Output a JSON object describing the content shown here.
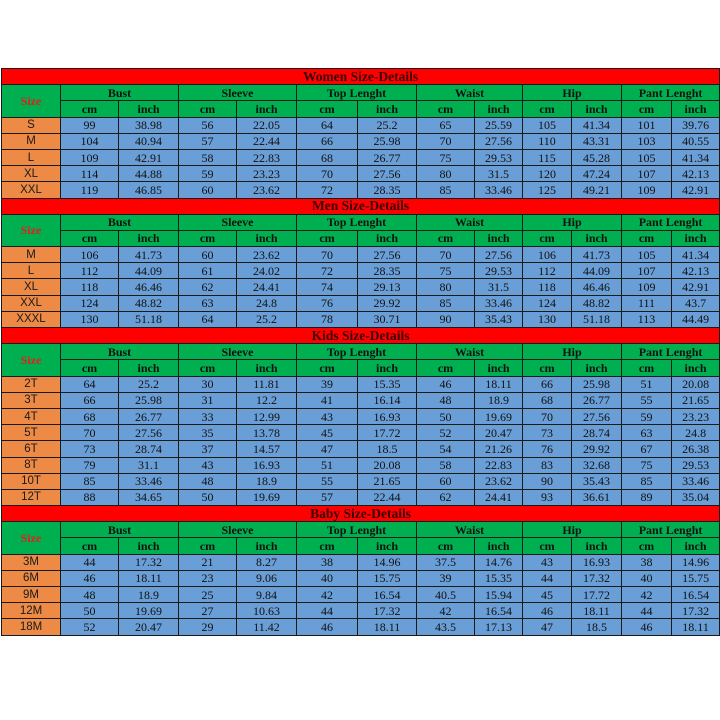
{
  "colors": {
    "title_bg": "#ff0000",
    "header_bg": "#00b050",
    "size_bg": "#ed8a45",
    "value_bg": "#6a9ed6",
    "size_label": "#e0201c"
  },
  "size_label": "Size",
  "measures": [
    "Bust",
    "Sleeve",
    "Top Lenght",
    "Waist",
    "Hip",
    "Pant Lenght"
  ],
  "units": [
    "cm",
    "inch"
  ],
  "sections": [
    {
      "title": "Women Size-Details",
      "rows": [
        [
          "S",
          "99",
          "38.98",
          "56",
          "22.05",
          "64",
          "25.2",
          "65",
          "25.59",
          "105",
          "41.34",
          "101",
          "39.76"
        ],
        [
          "M",
          "104",
          "40.94",
          "57",
          "22.44",
          "66",
          "25.98",
          "70",
          "27.56",
          "110",
          "43.31",
          "103",
          "40.55"
        ],
        [
          "L",
          "109",
          "42.91",
          "58",
          "22.83",
          "68",
          "26.77",
          "75",
          "29.53",
          "115",
          "45.28",
          "105",
          "41.34"
        ],
        [
          "XL",
          "114",
          "44.88",
          "59",
          "23.23",
          "70",
          "27.56",
          "80",
          "31.5",
          "120",
          "47.24",
          "107",
          "42.13"
        ],
        [
          "XXL",
          "119",
          "46.85",
          "60",
          "23.62",
          "72",
          "28.35",
          "85",
          "33.46",
          "125",
          "49.21",
          "109",
          "42.91"
        ]
      ]
    },
    {
      "title": "Men Size-Details",
      "rows": [
        [
          "M",
          "106",
          "41.73",
          "60",
          "23.62",
          "70",
          "27.56",
          "70",
          "27.56",
          "106",
          "41.73",
          "105",
          "41.34"
        ],
        [
          "L",
          "112",
          "44.09",
          "61",
          "24.02",
          "72",
          "28.35",
          "75",
          "29.53",
          "112",
          "44.09",
          "107",
          "42.13"
        ],
        [
          "XL",
          "118",
          "46.46",
          "62",
          "24.41",
          "74",
          "29.13",
          "80",
          "31.5",
          "118",
          "46.46",
          "109",
          "42.91"
        ],
        [
          "XXL",
          "124",
          "48.82",
          "63",
          "24.8",
          "76",
          "29.92",
          "85",
          "33.46",
          "124",
          "48.82",
          "111",
          "43.7"
        ],
        [
          "XXXL",
          "130",
          "51.18",
          "64",
          "25.2",
          "78",
          "30.71",
          "90",
          "35.43",
          "130",
          "51.18",
          "113",
          "44.49"
        ]
      ]
    },
    {
      "title": "Kids Size-Details",
      "rows": [
        [
          "2T",
          "64",
          "25.2",
          "30",
          "11.81",
          "39",
          "15.35",
          "46",
          "18.11",
          "66",
          "25.98",
          "51",
          "20.08"
        ],
        [
          "3T",
          "66",
          "25.98",
          "31",
          "12.2",
          "41",
          "16.14",
          "48",
          "18.9",
          "68",
          "26.77",
          "55",
          "21.65"
        ],
        [
          "4T",
          "68",
          "26.77",
          "33",
          "12.99",
          "43",
          "16.93",
          "50",
          "19.69",
          "70",
          "27.56",
          "59",
          "23.23"
        ],
        [
          "5T",
          "70",
          "27.56",
          "35",
          "13.78",
          "45",
          "17.72",
          "52",
          "20.47",
          "73",
          "28.74",
          "63",
          "24.8"
        ],
        [
          "6T",
          "73",
          "28.74",
          "37",
          "14.57",
          "47",
          "18.5",
          "54",
          "21.26",
          "76",
          "29.92",
          "67",
          "26.38"
        ],
        [
          "8T",
          "79",
          "31.1",
          "43",
          "16.93",
          "51",
          "20.08",
          "58",
          "22.83",
          "83",
          "32.68",
          "75",
          "29.53"
        ],
        [
          "10T",
          "85",
          "33.46",
          "48",
          "18.9",
          "55",
          "21.65",
          "60",
          "23.62",
          "90",
          "35.43",
          "85",
          "33.46"
        ],
        [
          "12T",
          "88",
          "34.65",
          "50",
          "19.69",
          "57",
          "22.44",
          "62",
          "24.41",
          "93",
          "36.61",
          "89",
          "35.04"
        ]
      ]
    },
    {
      "title": "Baby Size-Details",
      "rows": [
        [
          "3M",
          "44",
          "17.32",
          "21",
          "8.27",
          "38",
          "14.96",
          "37.5",
          "14.76",
          "43",
          "16.93",
          "38",
          "14.96"
        ],
        [
          "6M",
          "46",
          "18.11",
          "23",
          "9.06",
          "40",
          "15.75",
          "39",
          "15.35",
          "44",
          "17.32",
          "40",
          "15.75"
        ],
        [
          "9M",
          "48",
          "18.9",
          "25",
          "9.84",
          "42",
          "16.54",
          "40.5",
          "15.94",
          "45",
          "17.72",
          "42",
          "16.54"
        ],
        [
          "12M",
          "50",
          "19.69",
          "27",
          "10.63",
          "44",
          "17.32",
          "42",
          "16.54",
          "46",
          "18.11",
          "44",
          "17.32"
        ],
        [
          "18M",
          "52",
          "20.47",
          "29",
          "11.42",
          "46",
          "18.11",
          "43.5",
          "17.13",
          "47",
          "18.5",
          "46",
          "18.11"
        ]
      ]
    }
  ]
}
